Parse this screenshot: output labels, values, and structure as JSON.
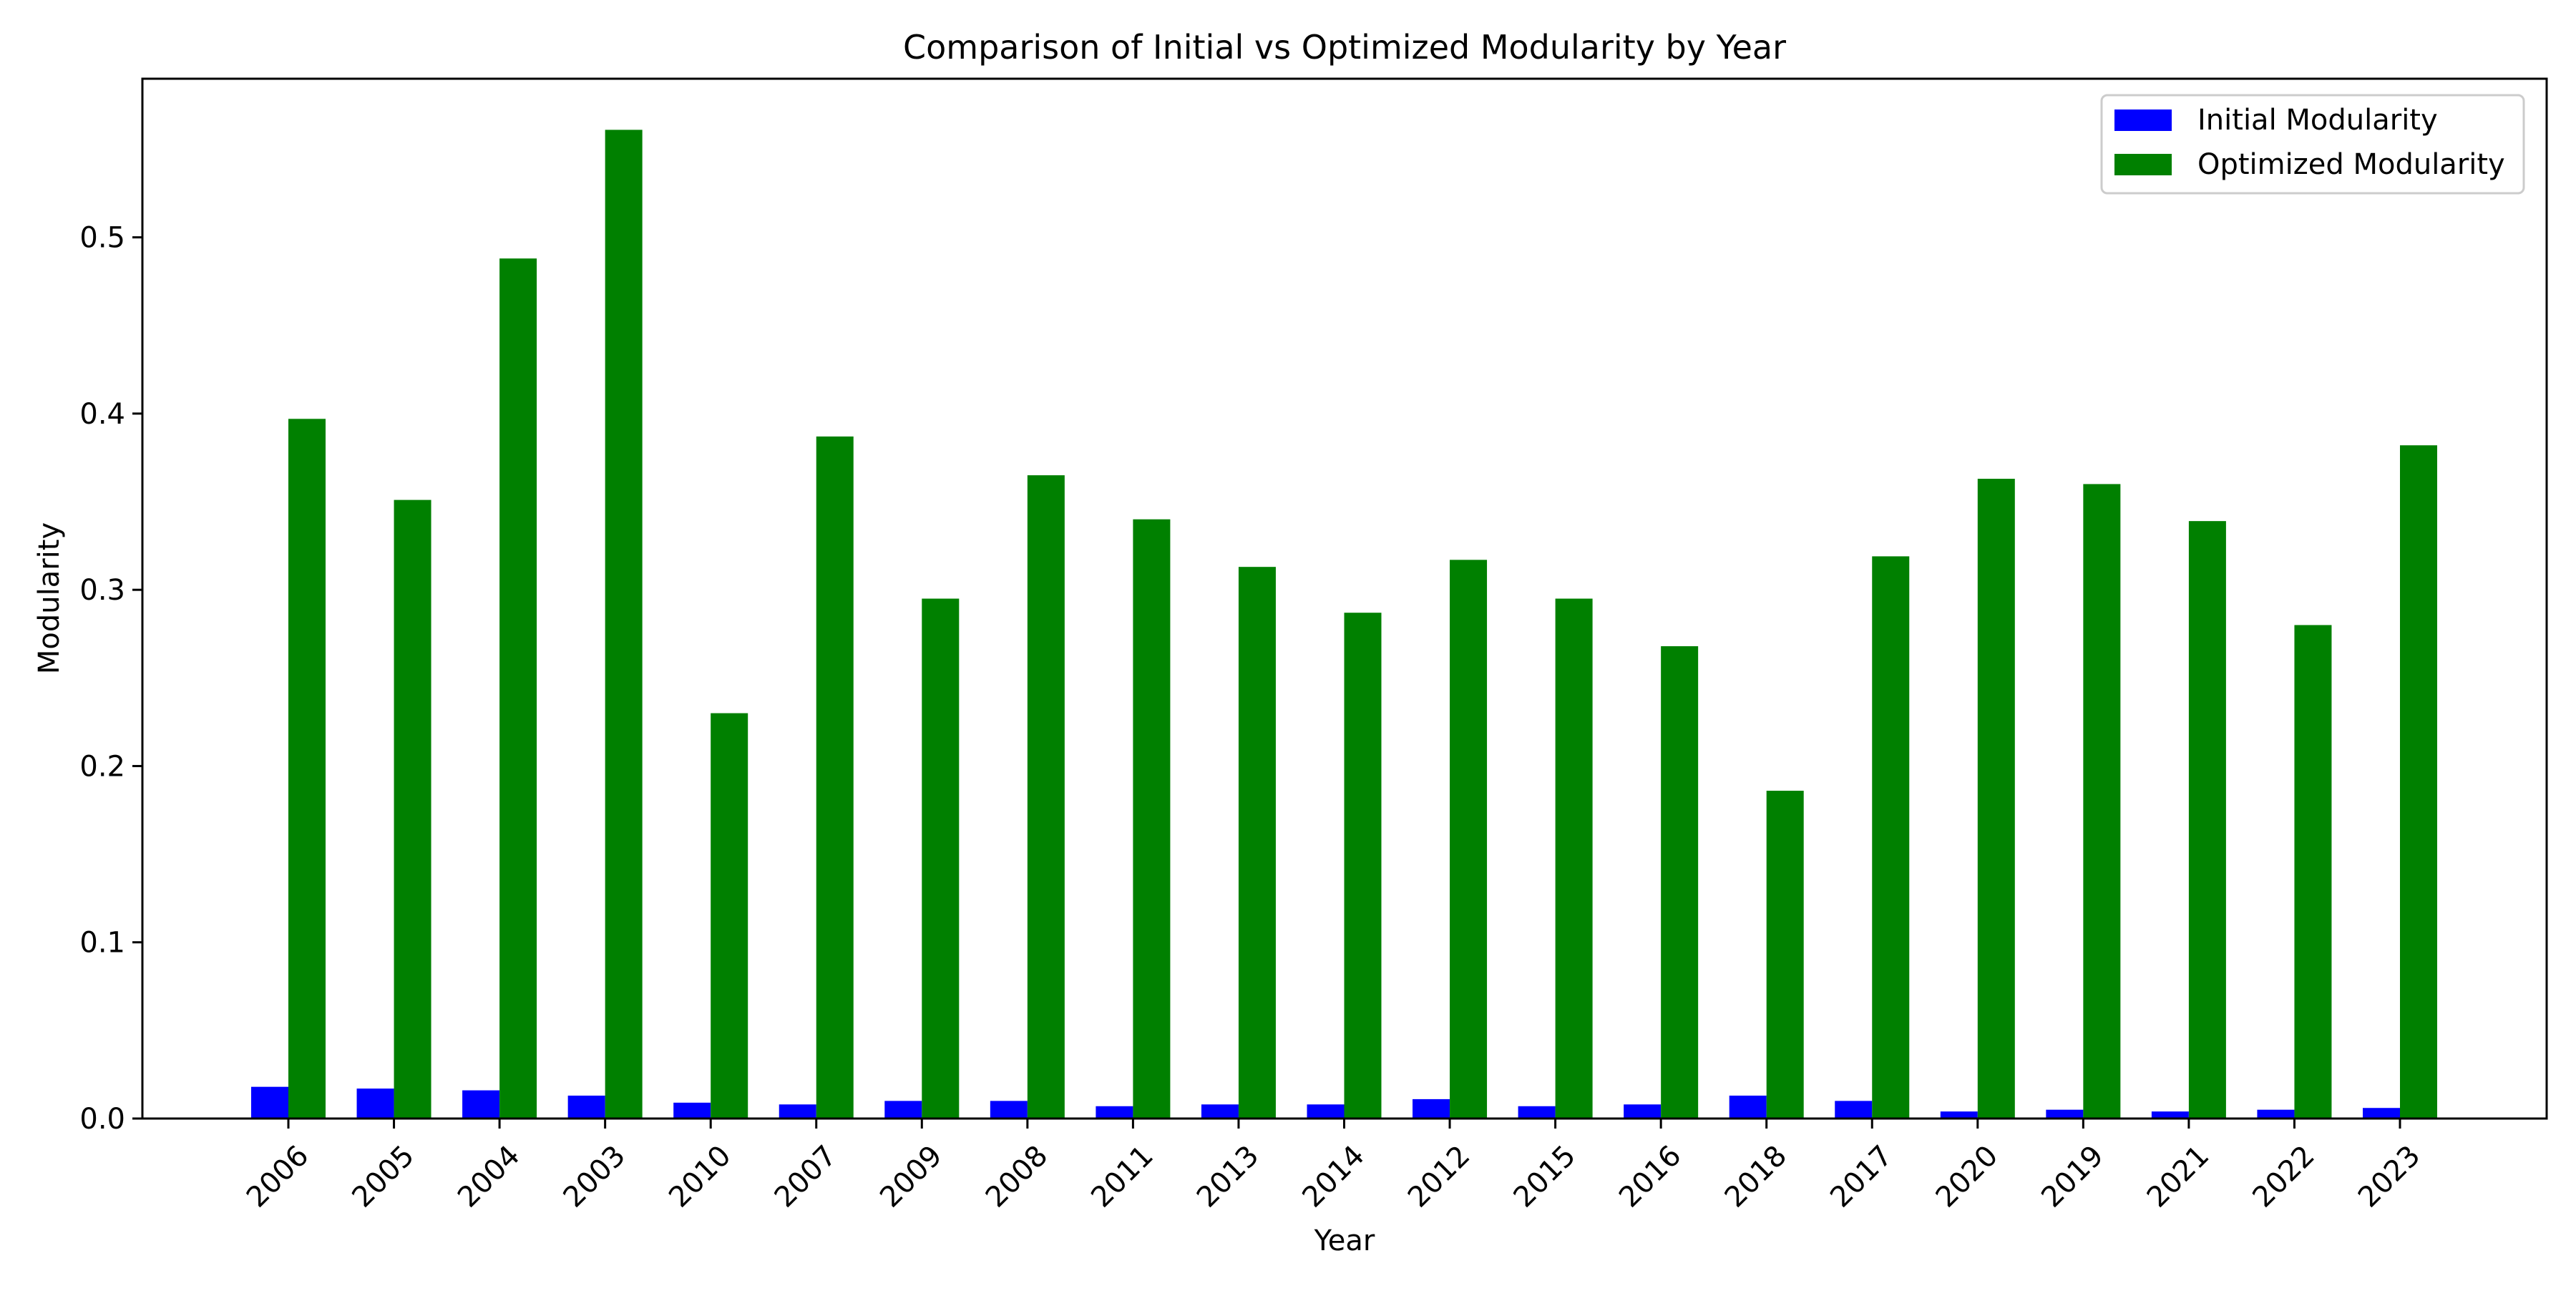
{
  "chart_data": {
    "type": "bar",
    "title": "Comparison of Initial vs Optimized Modularity by Year",
    "xlabel": "Year",
    "ylabel": "Modularity",
    "categories": [
      "2006",
      "2005",
      "2004",
      "2003",
      "2010",
      "2007",
      "2009",
      "2008",
      "2011",
      "2013",
      "2014",
      "2012",
      "2015",
      "2016",
      "2018",
      "2017",
      "2020",
      "2019",
      "2021",
      "2022",
      "2023"
    ],
    "series": [
      {
        "name": "Initial Modularity",
        "color": "#0000ff",
        "values": [
          0.018,
          0.017,
          0.016,
          0.013,
          0.009,
          0.008,
          0.01,
          0.01,
          0.007,
          0.008,
          0.008,
          0.011,
          0.007,
          0.008,
          0.013,
          0.01,
          0.004,
          0.005,
          0.004,
          0.005,
          0.006
        ]
      },
      {
        "name": "Optimized Modularity",
        "color": "#008000",
        "values": [
          0.397,
          0.351,
          0.488,
          0.561,
          0.23,
          0.387,
          0.295,
          0.365,
          0.34,
          0.313,
          0.287,
          0.317,
          0.295,
          0.268,
          0.186,
          0.319,
          0.363,
          0.36,
          0.339,
          0.28,
          0.382
        ]
      }
    ],
    "ylim": [
      0,
      0.59
    ],
    "yticks": [
      "0.0",
      "0.1",
      "0.2",
      "0.3",
      "0.4",
      "0.5"
    ],
    "legend_position": "top-right",
    "grid": false
  }
}
